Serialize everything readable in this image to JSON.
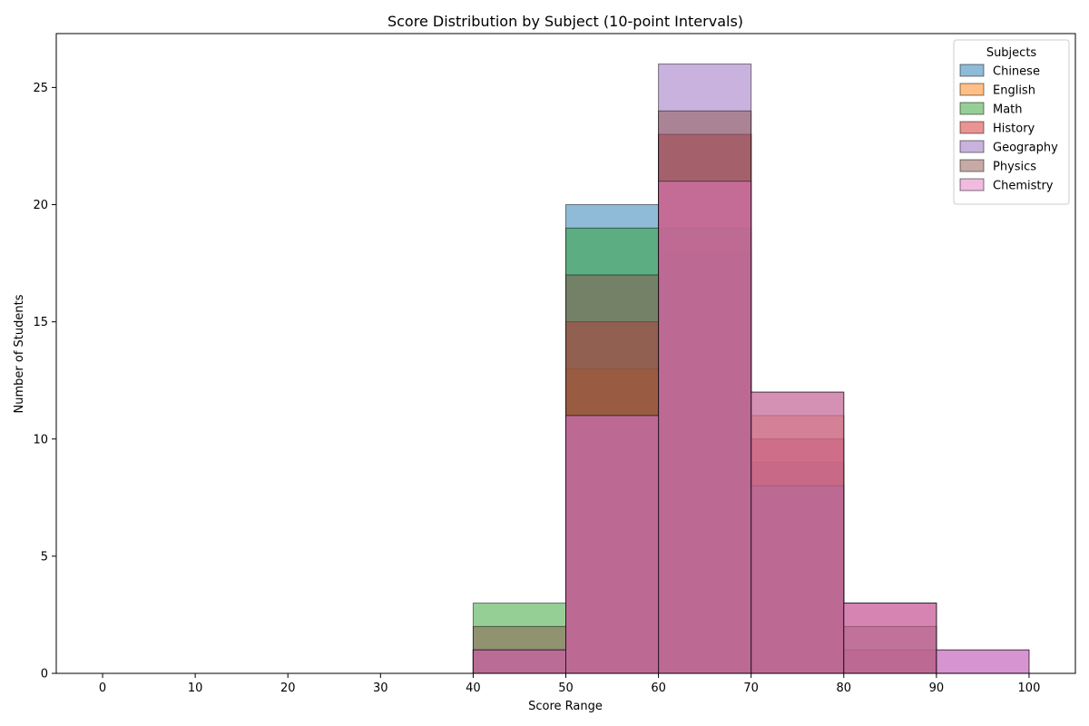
{
  "chart_data": {
    "type": "bar",
    "title": "Score Distribution by Subject (10-point Intervals)",
    "xlabel": "Score Range",
    "ylabel": "Number of Students",
    "xlim": [
      -5,
      105
    ],
    "ylim": [
      0,
      27.3
    ],
    "xticks": [
      0,
      10,
      20,
      30,
      40,
      50,
      60,
      70,
      80,
      90,
      100
    ],
    "yticks": [
      0,
      5,
      10,
      15,
      20,
      25
    ],
    "bin_edges": [
      0,
      10,
      20,
      30,
      40,
      50,
      60,
      70,
      80,
      90,
      100
    ],
    "grid": false,
    "legend": {
      "title": "Subjects",
      "position": "top-right"
    },
    "series": [
      {
        "name": "Chinese",
        "color": "#1f77b4",
        "values": [
          0,
          0,
          0,
          0,
          1,
          20,
          18,
          9,
          2,
          0
        ]
      },
      {
        "name": "English",
        "color": "#ff7f0e",
        "values": [
          0,
          0,
          0,
          0,
          0,
          13,
          23,
          11,
          3,
          0
        ]
      },
      {
        "name": "Math",
        "color": "#2ca02c",
        "values": [
          0,
          0,
          0,
          0,
          3,
          19,
          19,
          8,
          1,
          0
        ]
      },
      {
        "name": "History",
        "color": "#d62728",
        "values": [
          0,
          0,
          0,
          0,
          1,
          15,
          23,
          10,
          1,
          0
        ]
      },
      {
        "name": "Geography",
        "color": "#9467bd",
        "values": [
          0,
          0,
          0,
          0,
          1,
          11,
          26,
          8,
          3,
          1
        ]
      },
      {
        "name": "Physics",
        "color": "#8c564b",
        "values": [
          0,
          0,
          0,
          0,
          2,
          17,
          24,
          12,
          2,
          0
        ]
      },
      {
        "name": "Chemistry",
        "color": "#e377c2",
        "values": [
          0,
          0,
          0,
          0,
          1,
          11,
          21,
          12,
          3,
          1
        ]
      }
    ]
  }
}
